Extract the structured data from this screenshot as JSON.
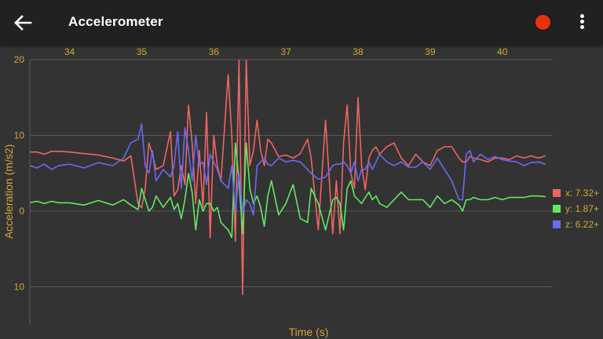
{
  "appbar": {
    "title": "Accelerometer",
    "back_icon": "arrow-left-icon",
    "record_icon": "record-dot-icon",
    "record_color": "#e8320f",
    "menu_icon": "more-vertical-icon"
  },
  "legend": [
    {
      "label": "x: 7.32+",
      "color": "#f06464"
    },
    {
      "label": "y: 1.87+",
      "color": "#63e863"
    },
    {
      "label": "z: 6.22+",
      "color": "#6a6af2"
    }
  ],
  "axes": {
    "xlabel": "Time (s)",
    "ylabel": "Acceleration (m/s2)",
    "xticks": [
      "34",
      "35",
      "36",
      "37",
      "38",
      "39",
      "40"
    ],
    "yticks": [
      "20",
      "10",
      "0",
      "10"
    ]
  },
  "chart_data": {
    "type": "line",
    "title": "Accelerometer",
    "xlabel": "Time (s)",
    "ylabel": "Acceleration (m/s2)",
    "xlim": [
      33.45,
      40.7
    ],
    "ylim": [
      -15,
      20
    ],
    "x_ticks": [
      34,
      35,
      36,
      37,
      38,
      39,
      40
    ],
    "y_ticks": [
      20,
      10,
      0,
      -10
    ],
    "grid": true,
    "legend_position": "right",
    "x": [
      33.45,
      33.55,
      33.65,
      33.75,
      33.85,
      34.0,
      34.2,
      34.4,
      34.6,
      34.75,
      34.85,
      34.95,
      35.0,
      35.05,
      35.1,
      35.15,
      35.2,
      35.3,
      35.4,
      35.45,
      35.5,
      35.55,
      35.6,
      35.65,
      35.7,
      35.75,
      35.8,
      35.85,
      35.9,
      35.95,
      36.0,
      36.05,
      36.1,
      36.2,
      36.25,
      36.3,
      36.35,
      36.4,
      36.45,
      36.5,
      36.55,
      36.6,
      36.65,
      36.7,
      36.75,
      36.8,
      36.9,
      37.0,
      37.1,
      37.2,
      37.3,
      37.35,
      37.45,
      37.55,
      37.65,
      37.7,
      37.75,
      37.8,
      37.85,
      37.9,
      37.95,
      38.0,
      38.05,
      38.1,
      38.15,
      38.2,
      38.25,
      38.3,
      38.4,
      38.5,
      38.6,
      38.7,
      38.8,
      38.9,
      39.0,
      39.1,
      39.2,
      39.3,
      39.4,
      39.45,
      39.5,
      39.55,
      39.6,
      39.7,
      39.8,
      39.9,
      40.0,
      40.1,
      40.2,
      40.3,
      40.4,
      40.5,
      40.6
    ],
    "series": [
      {
        "name": "x",
        "color": "#f06464",
        "values": [
          7.8,
          7.8,
          7.5,
          7.9,
          7.9,
          7.8,
          7.6,
          7.4,
          7.0,
          6.6,
          7.3,
          1.0,
          0.4,
          3.0,
          9.0,
          7.5,
          5.5,
          6.0,
          10.5,
          2.0,
          2.8,
          6.0,
          3.5,
          14.0,
          9.0,
          1.0,
          8.0,
          0.5,
          13.0,
          -3.5,
          10.0,
          6.0,
          4.0,
          18.0,
          10.0,
          -4.0,
          20.0,
          -11.0,
          20.0,
          6.0,
          8.0,
          12.0,
          8.0,
          6.0,
          9.5,
          9.0,
          7.2,
          7.4,
          7.0,
          7.6,
          9.5,
          7.0,
          -2.5,
          12.0,
          -3.0,
          4.0,
          -3.0,
          9.0,
          14.0,
          5.0,
          3.0,
          15.0,
          6.0,
          2.8,
          7.0,
          8.0,
          8.5,
          7.5,
          8.5,
          9.0,
          7.0,
          6.0,
          7.5,
          6.5,
          6.0,
          8.0,
          8.5,
          8.5,
          7.0,
          6.5,
          6.5,
          7.2,
          7.0,
          6.8,
          6.5,
          7.0,
          7.0,
          6.8,
          7.3,
          7.0,
          7.3,
          7.0,
          7.3
        ]
      },
      {
        "name": "y",
        "color": "#63e863",
        "values": [
          1.1,
          1.3,
          1.0,
          1.3,
          1.1,
          1.1,
          0.8,
          1.4,
          0.8,
          1.5,
          0.8,
          0.2,
          3.0,
          1.5,
          0.0,
          0.5,
          2.0,
          0.5,
          1.8,
          0.2,
          1.0,
          -1.0,
          1.5,
          5.0,
          2.5,
          -2.5,
          1.5,
          0.0,
          1.0,
          1.0,
          0.0,
          0.5,
          -1.5,
          -2.5,
          -3.5,
          9.0,
          4.0,
          -3.0,
          9.0,
          3.0,
          1.0,
          2.0,
          0.5,
          -2.0,
          2.0,
          4.0,
          -0.5,
          1.0,
          3.5,
          -1.0,
          -1.5,
          3.0,
          1.0,
          -2.5,
          1.5,
          1.8,
          1.0,
          -2.5,
          3.0,
          4.0,
          2.0,
          1.5,
          1.0,
          1.8,
          2.5,
          1.5,
          2.0,
          1.0,
          0.5,
          1.5,
          2.5,
          1.5,
          1.5,
          1.5,
          0.5,
          2.0,
          1.0,
          1.5,
          0.8,
          0.0,
          1.5,
          1.5,
          1.8,
          1.5,
          1.5,
          1.8,
          1.5,
          1.8,
          1.8,
          1.8,
          2.0,
          2.0,
          1.9
        ]
      },
      {
        "name": "z",
        "color": "#6a6af2",
        "values": [
          6.0,
          5.7,
          6.2,
          5.5,
          6.0,
          6.2,
          5.7,
          6.4,
          6.0,
          7.0,
          9.0,
          9.5,
          11.5,
          6.0,
          5.0,
          8.0,
          4.0,
          5.5,
          4.5,
          6.0,
          10.5,
          3.0,
          11.0,
          8.0,
          4.0,
          10.0,
          6.0,
          6.5,
          3.5,
          7.5,
          6.5,
          5.5,
          4.0,
          3.0,
          6.0,
          0.0,
          5.0,
          -0.3,
          1.5,
          1.0,
          -0.5,
          6.0,
          6.5,
          7.0,
          6.2,
          6.0,
          7.0,
          6.5,
          6.7,
          6.5,
          5.5,
          5.0,
          4.2,
          4.5,
          6.0,
          6.2,
          6.2,
          6.5,
          6.0,
          5.0,
          6.5,
          4.0,
          5.5,
          5.5,
          6.5,
          5.5,
          6.5,
          7.5,
          6.5,
          6.0,
          6.5,
          5.8,
          5.8,
          6.5,
          5.5,
          7.0,
          5.5,
          4.0,
          1.5,
          1.5,
          7.5,
          8.0,
          6.5,
          7.5,
          6.8,
          7.2,
          6.8,
          6.6,
          6.5,
          6.0,
          6.4,
          6.5,
          6.2
        ]
      }
    ]
  }
}
